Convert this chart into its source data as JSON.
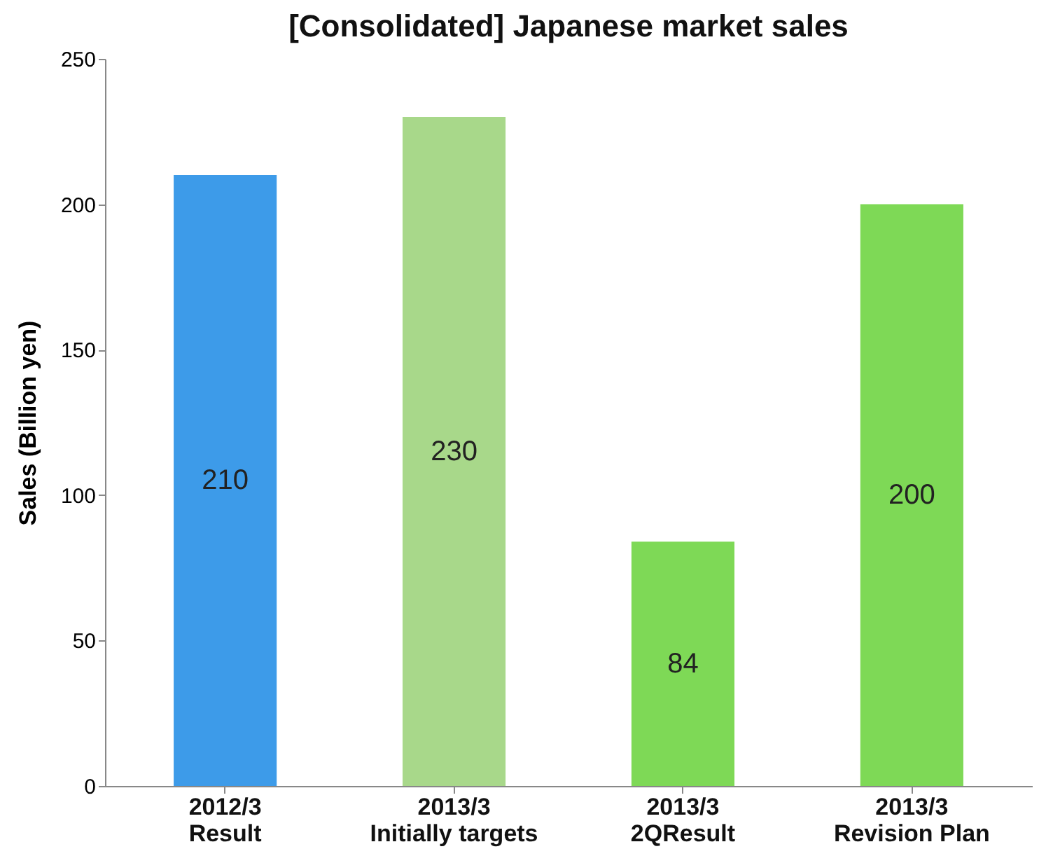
{
  "chart_data": {
    "type": "bar",
    "title": "[Consolidated]  Japanese market sales",
    "ylabel": "Sales (Billion yen)",
    "categories": [
      "2012/3\nResult",
      "2013/3\nInitially targets",
      "2013/3\n2QResult",
      "2013/3\nRevision Plan"
    ],
    "values": [
      210,
      230,
      84,
      200
    ],
    "colors": [
      "#3d9be9",
      "#a8d88a",
      "#7ed956",
      "#7ed956"
    ],
    "ylim": [
      0,
      250
    ],
    "yticks": [
      0,
      50,
      100,
      150,
      200,
      250
    ],
    "grid": false,
    "data_labels": true
  }
}
